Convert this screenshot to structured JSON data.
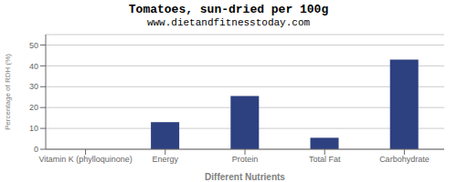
{
  "chart_data": {
    "type": "bar",
    "title": "Tomatoes, sun-dried per 100g",
    "subtitle": "www.dietandfitnesstoday.com",
    "xlabel": "Different Nutrients",
    "ylabel": "Percentage of RDH (%)",
    "categories": [
      "Vitamin K (phylloquinone)",
      "Energy",
      "Protein",
      "Total Fat",
      "Carbohydrate"
    ],
    "values": [
      0,
      13,
      25.5,
      5.5,
      43
    ],
    "color": "#2d4080",
    "ylim": [
      0,
      55
    ],
    "yticks": [
      0,
      10,
      20,
      30,
      40,
      50
    ],
    "grid": true
  }
}
